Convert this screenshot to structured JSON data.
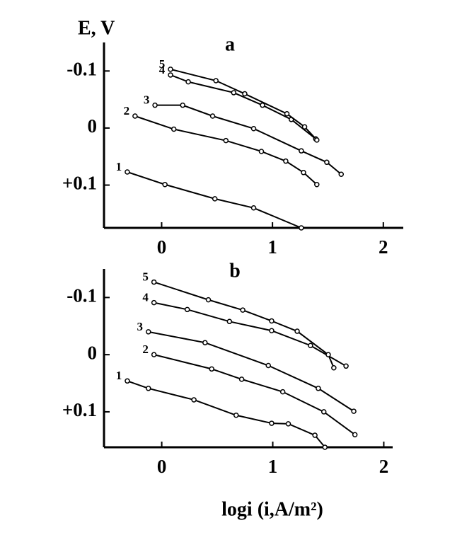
{
  "chart_data": [
    {
      "type": "line",
      "title": "a",
      "ylabel": "E, V",
      "color": "#000000",
      "y_inverted": true,
      "marker": "circle",
      "xlim": [
        -0.52,
        2.18
      ],
      "xticks": [
        0,
        1,
        2
      ],
      "ylim": [
        -0.15,
        0.175
      ],
      "yticks": [
        -0.1,
        0,
        {
          "value": 0.1,
          "label": "+0.1"
        }
      ],
      "series": [
        {
          "name": "1",
          "x": [
            -0.31,
            0.03,
            0.48,
            0.83,
            1.26
          ],
          "values": [
            0.077,
            0.099,
            0.124,
            0.14,
            0.175
          ]
        },
        {
          "name": "2",
          "x": [
            -0.24,
            0.11,
            0.58,
            0.9,
            1.12,
            1.28,
            1.4
          ],
          "values": [
            -0.021,
            0.002,
            0.022,
            0.041,
            0.058,
            0.078,
            0.099
          ]
        },
        {
          "name": "3",
          "x": [
            -0.06,
            0.19,
            0.46,
            0.83,
            1.26,
            1.49,
            1.62
          ],
          "values": [
            -0.04,
            -0.04,
            -0.021,
            0.001,
            0.04,
            0.06,
            0.081
          ]
        },
        {
          "name": "4",
          "x": [
            0.08,
            0.24,
            0.65,
            0.91,
            1.17,
            1.39
          ],
          "values": [
            -0.093,
            -0.081,
            -0.062,
            -0.04,
            -0.015,
            0.019
          ]
        },
        {
          "name": "5",
          "x": [
            0.08,
            0.49,
            0.75,
            1.13,
            1.29,
            1.4
          ],
          "values": [
            -0.103,
            -0.083,
            -0.06,
            -0.025,
            -0.002,
            0.021
          ]
        }
      ]
    },
    {
      "type": "line",
      "title": "b",
      "xlabel": "logi (i,A/m²)",
      "color": "#000000",
      "y_inverted": true,
      "marker": "circle",
      "xlim": [
        -0.52,
        2.08
      ],
      "xticks": [
        0,
        1,
        2
      ],
      "ylim": [
        -0.15,
        0.162
      ],
      "yticks": [
        -0.1,
        0,
        {
          "value": 0.1,
          "label": "+0.1"
        }
      ],
      "series": [
        {
          "name": "1",
          "x": [
            -0.31,
            -0.12,
            0.29,
            0.67,
            0.99,
            1.14,
            1.38,
            1.47
          ],
          "values": [
            0.046,
            0.059,
            0.079,
            0.106,
            0.12,
            0.121,
            0.141,
            0.162
          ]
        },
        {
          "name": "2",
          "x": [
            -0.07,
            0.45,
            0.72,
            1.09,
            1.46,
            1.74
          ],
          "values": [
            0.0,
            0.025,
            0.043,
            0.065,
            0.1,
            0.14
          ]
        },
        {
          "name": "3",
          "x": [
            -0.12,
            0.39,
            0.96,
            1.41,
            1.73
          ],
          "values": [
            -0.04,
            -0.021,
            0.019,
            0.059,
            0.099
          ]
        },
        {
          "name": "4",
          "x": [
            -0.07,
            0.23,
            0.61,
            0.99,
            1.34,
            1.66
          ],
          "values": [
            -0.091,
            -0.079,
            -0.058,
            -0.042,
            -0.016,
            0.02
          ]
        },
        {
          "name": "5",
          "x": [
            -0.07,
            0.42,
            0.73,
            0.99,
            1.22,
            1.5,
            1.55
          ],
          "values": [
            -0.127,
            -0.096,
            -0.078,
            -0.059,
            -0.041,
            0.0,
            0.023
          ]
        }
      ]
    }
  ]
}
